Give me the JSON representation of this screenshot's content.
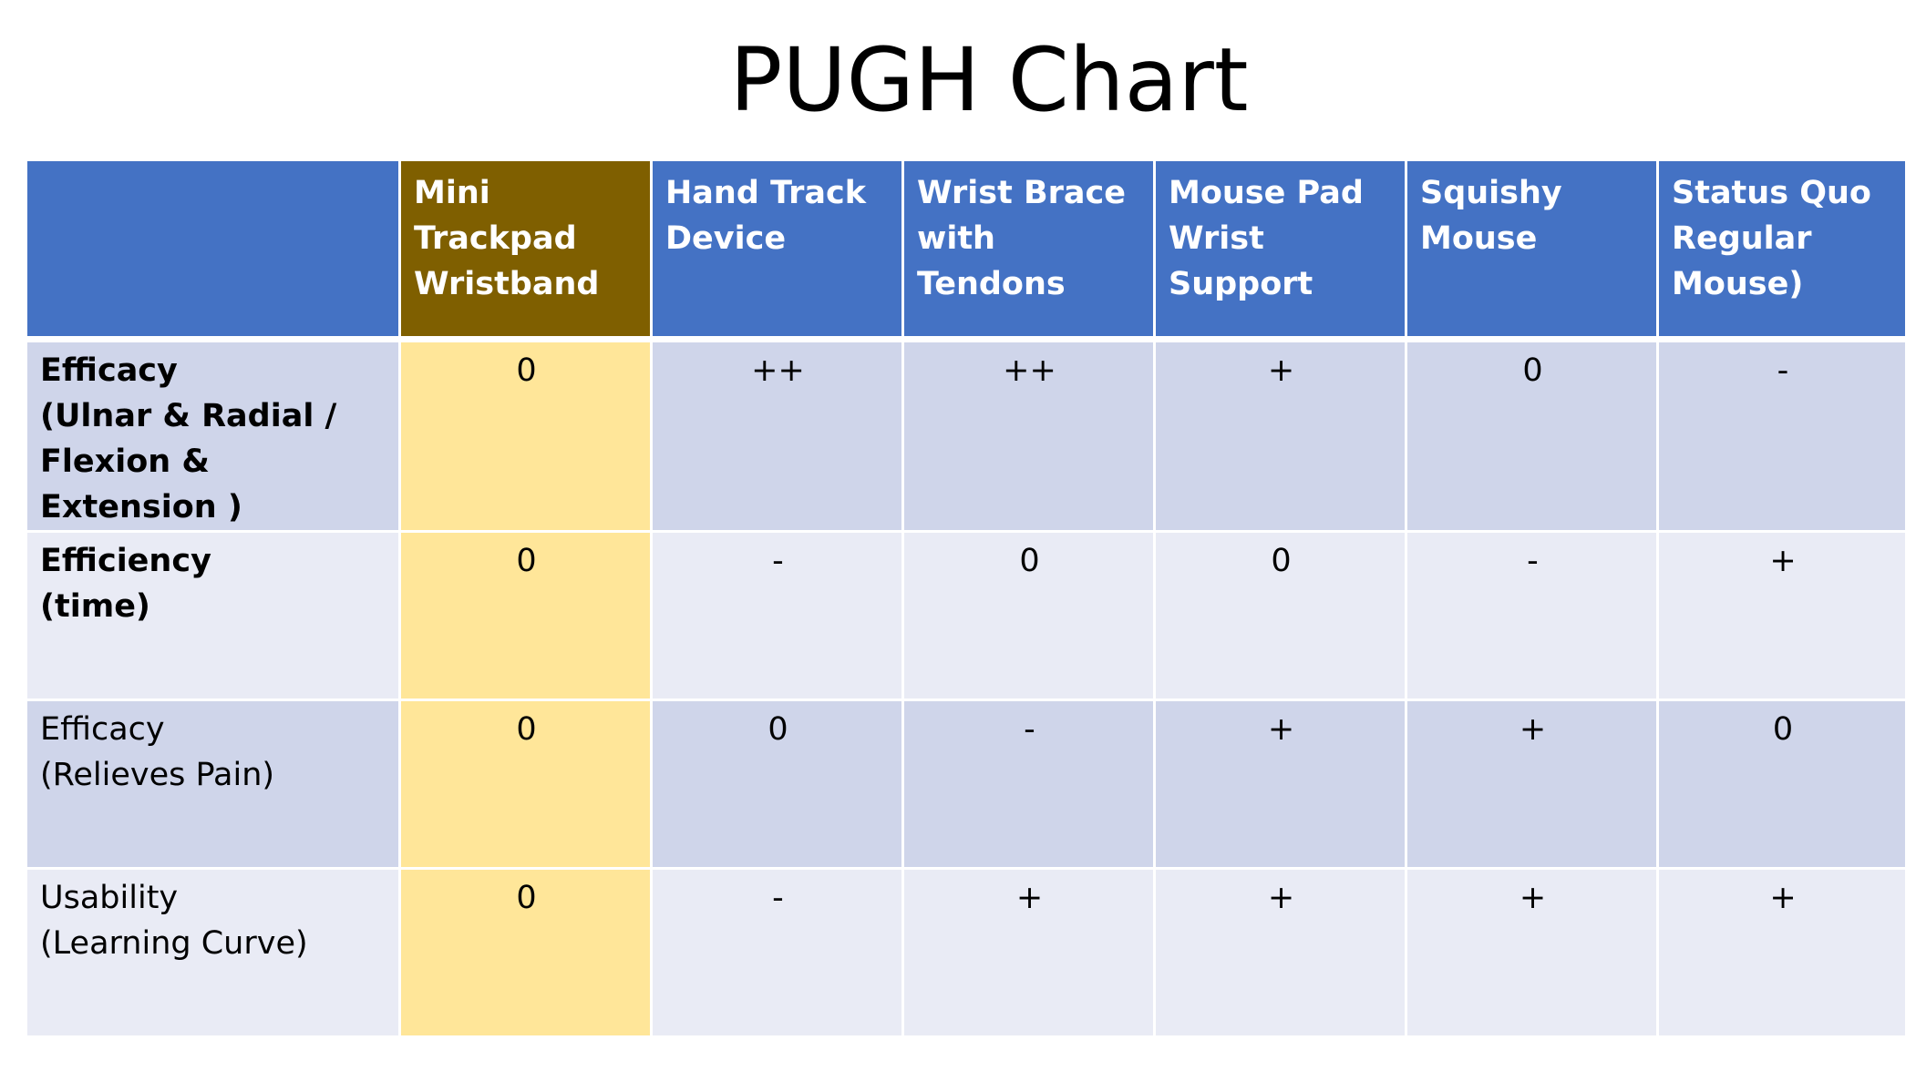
{
  "title": "PUGH Chart",
  "chart_data": {
    "type": "table",
    "title": "PUGH Chart",
    "columns": [
      "",
      "Mini Trackpad Wristband",
      "Hand Track Device",
      "Wrist Brace with Tendons",
      "Mouse Pad Wrist Support",
      "Squishy Mouse",
      "Status Quo Regular Mouse)"
    ],
    "column_header_lines": [
      [],
      [
        "Mini",
        "Trackpad",
        "Wristband"
      ],
      [
        "Hand Track",
        "Device"
      ],
      [
        "Wrist Brace",
        "with Tendons"
      ],
      [
        "Mouse Pad",
        "Wrist Support"
      ],
      [
        "Squishy",
        "Mouse"
      ],
      [
        "Status Quo",
        "Regular",
        "Mouse)"
      ]
    ],
    "datum_column_index": 1,
    "rows": [
      {
        "criterion_lines": [
          "Efficacy",
          "(Ulnar & Radial  /",
          "Flexion & Extension )"
        ],
        "bold": true,
        "values": [
          "0",
          "++",
          "++",
          "+",
          "0",
          "-"
        ]
      },
      {
        "criterion_lines": [
          "Efficiency",
          "(time)"
        ],
        "bold": true,
        "values": [
          "0",
          "-",
          "0",
          "0",
          "-",
          "+"
        ]
      },
      {
        "criterion_lines": [
          "Efficacy",
          "(Relieves Pain)"
        ],
        "bold": false,
        "values": [
          "0",
          "0",
          "-",
          "+",
          "+",
          "0"
        ]
      },
      {
        "criterion_lines": [
          "Usability",
          "(Learning Curve)"
        ],
        "bold": false,
        "values": [
          "0",
          "-",
          "+",
          "+",
          "+",
          "+"
        ]
      }
    ],
    "colors": {
      "header": "#4472c4",
      "datum_header": "#7f5f00",
      "datum_cell": "#ffe699",
      "row_dark": "#cfd5ea",
      "row_light": "#e9ebf5"
    }
  }
}
